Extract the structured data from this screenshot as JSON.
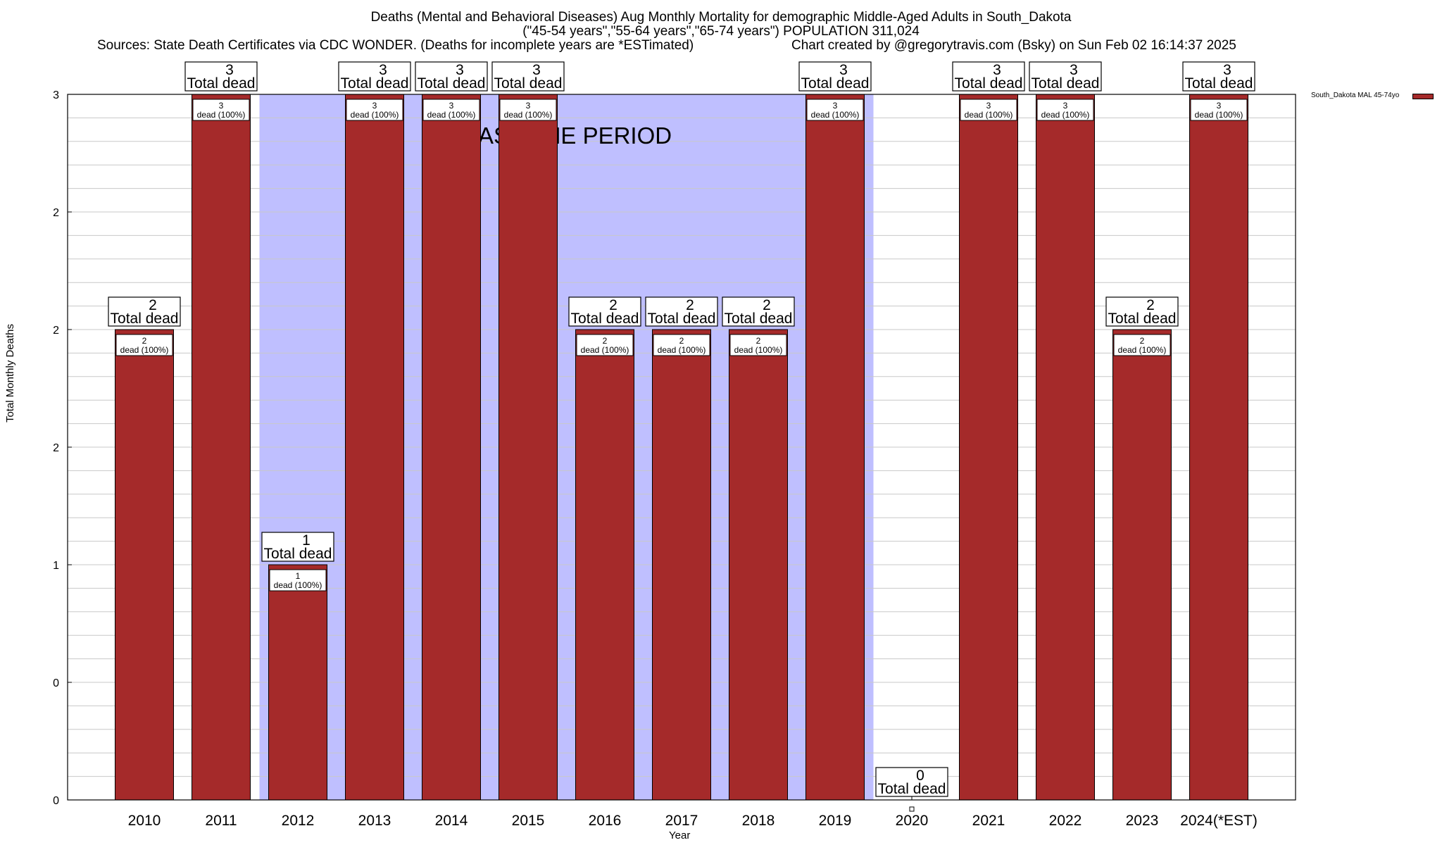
{
  "chart_data": {
    "type": "bar",
    "title": "Deaths (Mental and Behavioral Diseases) Aug Monthly Mortality for demographic Middle-Aged Adults in South_Dakota",
    "subtitle": "(\"45-54 years\",\"55-64 years\",\"65-74 years\") POPULATION 311,024",
    "sources": "Sources: State Death Certificates via CDC WONDER. (Deaths for incomplete years are *ESTimated)",
    "credit": "Chart created by @gregorytravis.com (Bsky) on Sun Feb 02 16:14:37 2025",
    "xlabel": "Year",
    "ylabel": "Total Monthly Deaths",
    "ylim": [
      0,
      3
    ],
    "yticks": [
      "0",
      "0",
      "1",
      "2",
      "2",
      "2",
      "3"
    ],
    "categories": [
      "2010",
      "2011",
      "2012",
      "2013",
      "2014",
      "2015",
      "2016",
      "2017",
      "2018",
      "2019",
      "2020",
      "2021",
      "2022",
      "2023",
      "2024(*EST)"
    ],
    "series": [
      {
        "name": "South_Dakota MAL 45-74yo",
        "color": "#a52a2a",
        "values": [
          2,
          3,
          1,
          3,
          3,
          3,
          2,
          2,
          2,
          3,
          0,
          3,
          3,
          2,
          3
        ]
      }
    ],
    "total_label_suffix": "Total dead",
    "bar_label_suffix": "dead (100%)",
    "baseline_label": "BASELINE PERIOD",
    "baseline_range": [
      "2012",
      "2019"
    ],
    "baseline_color": "#bfbfff",
    "grid": true,
    "legend_position": "top-right outside"
  }
}
